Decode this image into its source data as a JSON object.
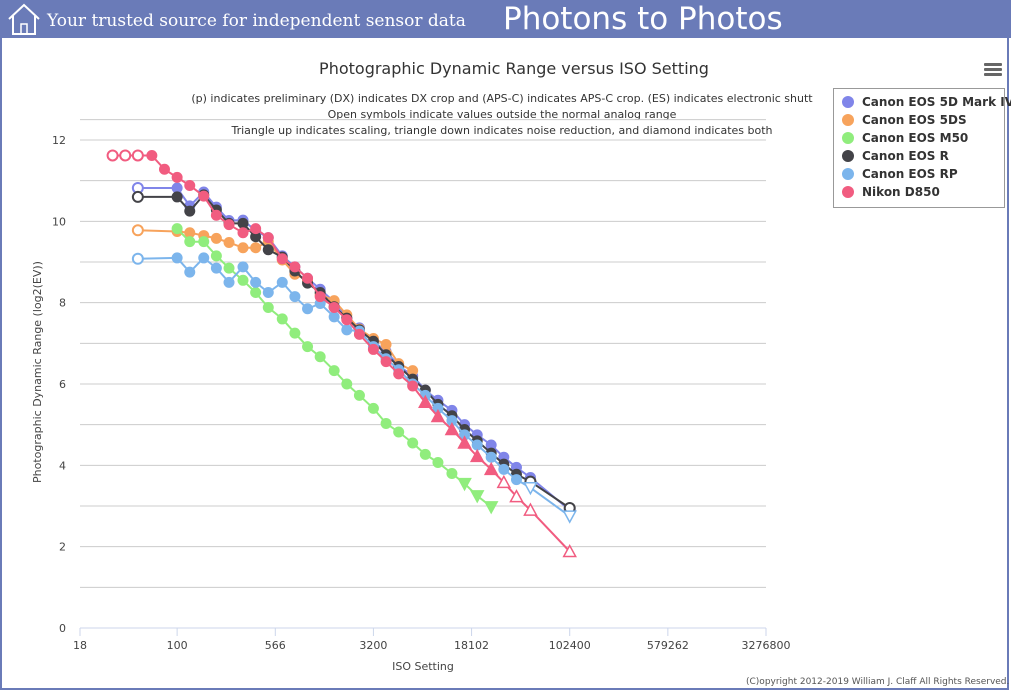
{
  "header": {
    "tagline": "Your trusted source for independent sensor data",
    "brand": "Photons to Photos"
  },
  "menu_icon": "hamburger-menu-icon",
  "colors": {
    "header_bg": "#6a7bb8",
    "gridline": "#cccccc"
  },
  "footer": {
    "copyright": "(C)opyright 2012-2019 William J. Claff All Rights Reserved."
  },
  "chart_data": {
    "type": "line",
    "title": "Photographic Dynamic Range versus ISO Setting",
    "subtitle": [
      "(p) indicates preliminary (DX) indicates DX crop and (APS-C) indicates APS-C crop. (ES) indicates electronic shutt",
      "Open symbols indicate values outside the normal analog range",
      "Triangle up indicates scaling, triangle down indicates noise reduction, and diamond indicates both"
    ],
    "xlabel": "ISO Setting",
    "ylabel": "Photographic Dynamic Range (log2(EV))",
    "xscale": "log2",
    "xlim": [
      18,
      3276800
    ],
    "x_ticks": [
      18,
      100,
      566,
      3200,
      18102,
      102400,
      579262,
      3276800
    ],
    "ylim": [
      0,
      12
    ],
    "y_ticks": [
      0,
      2,
      4,
      6,
      8,
      10,
      12
    ],
    "grid": true,
    "legend_position": "top-right",
    "series": [
      {
        "name": "Canon EOS 5D Mark IV",
        "color": "#8085e9",
        "points": [
          [
            50,
            10.82,
            "open"
          ],
          [
            100,
            10.82,
            "filled"
          ],
          [
            125,
            10.38,
            "filled"
          ],
          [
            160,
            10.72,
            "filled"
          ],
          [
            200,
            10.35,
            "filled"
          ],
          [
            250,
            10.02,
            "filled"
          ],
          [
            320,
            10.03,
            "filled"
          ],
          [
            400,
            9.77,
            "filled"
          ],
          [
            500,
            9.6,
            "filled"
          ],
          [
            640,
            9.15,
            "filled"
          ],
          [
            800,
            8.88,
            "filled"
          ],
          [
            1000,
            8.6,
            "filled"
          ],
          [
            1250,
            8.33,
            "filled"
          ],
          [
            1600,
            8.02,
            "filled"
          ],
          [
            2000,
            7.63,
            "filled"
          ],
          [
            2500,
            7.38,
            "filled"
          ],
          [
            3200,
            7.05,
            "filled"
          ],
          [
            4000,
            6.8,
            "filled"
          ],
          [
            5000,
            6.45,
            "filled"
          ],
          [
            6400,
            6.2,
            "filled"
          ],
          [
            8000,
            5.85,
            "filled"
          ],
          [
            10000,
            5.6,
            "filled"
          ],
          [
            12800,
            5.35,
            "filled"
          ],
          [
            16000,
            5.0,
            "filled"
          ],
          [
            20000,
            4.75,
            "filled"
          ],
          [
            25600,
            4.5,
            "filled"
          ],
          [
            32000,
            4.2,
            "filled"
          ],
          [
            40000,
            3.95,
            "filled"
          ],
          [
            51200,
            3.7,
            "filled"
          ],
          [
            102400,
            2.9,
            "open"
          ]
        ]
      },
      {
        "name": "Canon EOS 5DS",
        "color": "#f7a35c",
        "points": [
          [
            50,
            9.78,
            "open"
          ],
          [
            100,
            9.75,
            "filled"
          ],
          [
            125,
            9.72,
            "filled"
          ],
          [
            160,
            9.65,
            "filled"
          ],
          [
            200,
            9.58,
            "filled"
          ],
          [
            250,
            9.48,
            "filled"
          ],
          [
            320,
            9.35,
            "filled"
          ],
          [
            400,
            9.35,
            "filled"
          ],
          [
            500,
            9.5,
            "filled"
          ],
          [
            640,
            9.05,
            "filled"
          ],
          [
            800,
            8.7,
            "filled"
          ],
          [
            1000,
            8.55,
            "filled"
          ],
          [
            1250,
            8.2,
            "filled"
          ],
          [
            1600,
            8.05,
            "filled"
          ],
          [
            2000,
            7.7,
            "filled"
          ],
          [
            2500,
            7.35,
            "filled"
          ],
          [
            3200,
            7.12,
            "filled"
          ],
          [
            4000,
            6.97,
            "filled"
          ],
          [
            5000,
            6.5,
            "filled"
          ],
          [
            6400,
            6.33,
            "filled"
          ]
        ]
      },
      {
        "name": "Canon EOS M50",
        "color": "#90ed7d",
        "points": [
          [
            100,
            9.82,
            "filled"
          ],
          [
            125,
            9.5,
            "filled"
          ],
          [
            160,
            9.5,
            "filled"
          ],
          [
            200,
            9.15,
            "filled"
          ],
          [
            250,
            8.85,
            "filled"
          ],
          [
            320,
            8.55,
            "filled"
          ],
          [
            400,
            8.25,
            "filled"
          ],
          [
            500,
            7.88,
            "filled"
          ],
          [
            640,
            7.6,
            "filled"
          ],
          [
            800,
            7.25,
            "filled"
          ],
          [
            1000,
            6.92,
            "filled"
          ],
          [
            1250,
            6.67,
            "filled"
          ],
          [
            1600,
            6.33,
            "filled"
          ],
          [
            2000,
            6.0,
            "filled"
          ],
          [
            2500,
            5.72,
            "filled"
          ],
          [
            3200,
            5.4,
            "filled"
          ],
          [
            4000,
            5.03,
            "filled"
          ],
          [
            5000,
            4.82,
            "filled"
          ],
          [
            6400,
            4.55,
            "filled"
          ],
          [
            8000,
            4.27,
            "filled"
          ],
          [
            10000,
            4.07,
            "filled"
          ],
          [
            12800,
            3.8,
            "filled"
          ],
          [
            16000,
            3.55,
            "tri-down"
          ],
          [
            20000,
            3.25,
            "tri-down"
          ],
          [
            25600,
            2.98,
            "tri-down"
          ]
        ]
      },
      {
        "name": "Canon EOS R",
        "color": "#434348",
        "points": [
          [
            50,
            10.6,
            "open"
          ],
          [
            100,
            10.6,
            "filled"
          ],
          [
            125,
            10.25,
            "filled"
          ],
          [
            160,
            10.65,
            "filled"
          ],
          [
            200,
            10.28,
            "filled"
          ],
          [
            250,
            9.95,
            "filled"
          ],
          [
            320,
            9.95,
            "filled"
          ],
          [
            400,
            9.62,
            "filled"
          ],
          [
            500,
            9.3,
            "filled"
          ],
          [
            640,
            9.12,
            "filled"
          ],
          [
            800,
            8.78,
            "filled"
          ],
          [
            1000,
            8.48,
            "filled"
          ],
          [
            1250,
            8.25,
            "filled"
          ],
          [
            1600,
            7.9,
            "filled"
          ],
          [
            2000,
            7.62,
            "filled"
          ],
          [
            2500,
            7.33,
            "filled"
          ],
          [
            3200,
            7.05,
            "filled"
          ],
          [
            4000,
            6.72,
            "filled"
          ],
          [
            5000,
            6.43,
            "filled"
          ],
          [
            6400,
            6.12,
            "filled"
          ],
          [
            8000,
            5.85,
            "filled"
          ],
          [
            10000,
            5.5,
            "filled"
          ],
          [
            12800,
            5.22,
            "filled"
          ],
          [
            16000,
            4.88,
            "filled"
          ],
          [
            20000,
            4.6,
            "filled"
          ],
          [
            25600,
            4.3,
            "filled"
          ],
          [
            32000,
            4.03,
            "filled"
          ],
          [
            40000,
            3.78,
            "filled"
          ],
          [
            51200,
            3.6,
            "open"
          ],
          [
            102400,
            2.95,
            "open"
          ]
        ]
      },
      {
        "name": "Canon EOS RP",
        "color": "#7cb5ec",
        "points": [
          [
            50,
            9.08,
            "open"
          ],
          [
            100,
            9.1,
            "filled"
          ],
          [
            125,
            8.75,
            "filled"
          ],
          [
            160,
            9.1,
            "filled"
          ],
          [
            200,
            8.85,
            "filled"
          ],
          [
            250,
            8.5,
            "filled"
          ],
          [
            320,
            8.88,
            "filled"
          ],
          [
            400,
            8.5,
            "filled"
          ],
          [
            500,
            8.25,
            "filled"
          ],
          [
            640,
            8.5,
            "filled"
          ],
          [
            800,
            8.15,
            "filled"
          ],
          [
            1000,
            7.85,
            "filled"
          ],
          [
            1250,
            7.98,
            "filled"
          ],
          [
            1600,
            7.65,
            "filled"
          ],
          [
            2000,
            7.33,
            "filled"
          ],
          [
            2500,
            7.3,
            "filled"
          ],
          [
            3200,
            6.92,
            "filled"
          ],
          [
            4000,
            6.62,
            "filled"
          ],
          [
            5000,
            6.35,
            "filled"
          ],
          [
            6400,
            6.0,
            "filled"
          ],
          [
            8000,
            5.72,
            "filled"
          ],
          [
            10000,
            5.4,
            "filled"
          ],
          [
            12800,
            5.1,
            "filled"
          ],
          [
            16000,
            4.75,
            "filled"
          ],
          [
            20000,
            4.5,
            "filled"
          ],
          [
            25600,
            4.2,
            "filled"
          ],
          [
            32000,
            3.9,
            "filled"
          ],
          [
            40000,
            3.65,
            "filled"
          ],
          [
            51200,
            3.45,
            "tri-down-open"
          ],
          [
            102400,
            2.75,
            "tri-down-open"
          ]
        ]
      },
      {
        "name": "Nikon D850",
        "color": "#f15c80",
        "points": [
          [
            32,
            11.62,
            "open"
          ],
          [
            40,
            11.62,
            "open"
          ],
          [
            50,
            11.62,
            "open"
          ],
          [
            64,
            11.62,
            "filled"
          ],
          [
            80,
            11.28,
            "filled"
          ],
          [
            100,
            11.08,
            "filled"
          ],
          [
            125,
            10.88,
            "filled"
          ],
          [
            160,
            10.62,
            "filled"
          ],
          [
            200,
            10.15,
            "filled"
          ],
          [
            250,
            9.92,
            "filled"
          ],
          [
            320,
            9.72,
            "filled"
          ],
          [
            400,
            9.82,
            "filled"
          ],
          [
            500,
            9.6,
            "filled"
          ],
          [
            640,
            9.08,
            "filled"
          ],
          [
            800,
            8.88,
            "filled"
          ],
          [
            1000,
            8.6,
            "filled"
          ],
          [
            1250,
            8.15,
            "filled"
          ],
          [
            1600,
            7.88,
            "filled"
          ],
          [
            2000,
            7.58,
            "filled"
          ],
          [
            2500,
            7.22,
            "filled"
          ],
          [
            3200,
            6.85,
            "filled"
          ],
          [
            4000,
            6.55,
            "filled"
          ],
          [
            5000,
            6.25,
            "filled"
          ],
          [
            6400,
            5.95,
            "filled"
          ],
          [
            8000,
            5.55,
            "tri-up"
          ],
          [
            10000,
            5.2,
            "tri-up"
          ],
          [
            12800,
            4.88,
            "tri-up"
          ],
          [
            16000,
            4.55,
            "tri-up"
          ],
          [
            20000,
            4.22,
            "tri-up"
          ],
          [
            25600,
            3.9,
            "tri-up"
          ],
          [
            32000,
            3.58,
            "tri-up-open"
          ],
          [
            40000,
            3.23,
            "tri-up-open"
          ],
          [
            51200,
            2.9,
            "tri-up-open"
          ],
          [
            102400,
            1.88,
            "tri-up-open"
          ]
        ]
      }
    ]
  }
}
